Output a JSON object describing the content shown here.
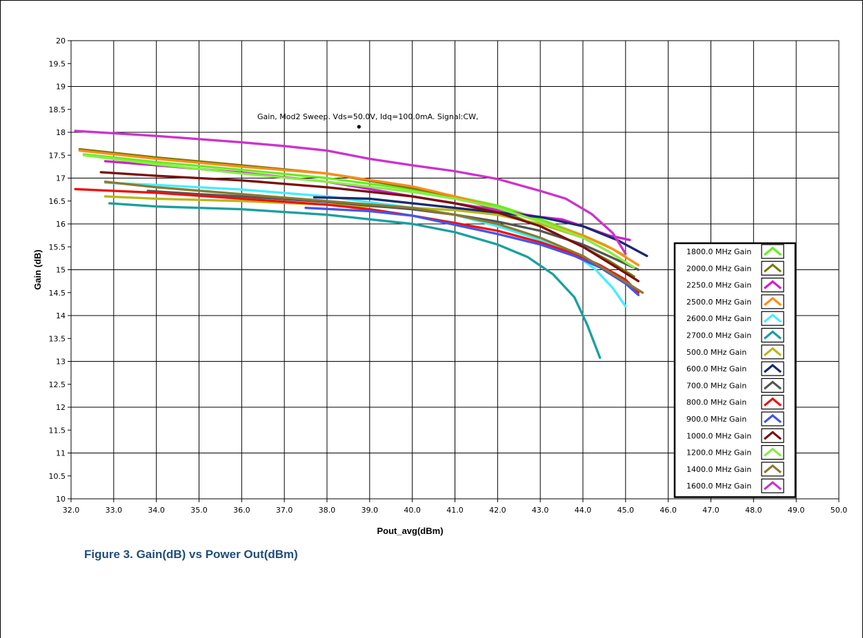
{
  "caption": "Figure 3. Gain(dB)  vs Power Out(dBm)",
  "chart_data": {
    "type": "line",
    "title": "",
    "annotation": "Gain, Mod2  Sweep. Vds=50.0V, Idq=100.0mA. Signal:CW,",
    "annotation_point": [
      38.75,
      18.12
    ],
    "xlabel": "Pout_avg(dBm)",
    "ylabel": "Gain (dB)",
    "xlim": [
      32.0,
      50.0
    ],
    "ylim": [
      10,
      20
    ],
    "xticks": [
      "32.0",
      "33.0",
      "34.0",
      "35.0",
      "36.0",
      "37.0",
      "38.0",
      "39.0",
      "40.0",
      "41.0",
      "42.0",
      "43.0",
      "44.0",
      "45.0",
      "46.0",
      "47.0",
      "48.0",
      "49.0",
      "50.0"
    ],
    "yticks": [
      "10",
      "10.5",
      "11",
      "11.5",
      "12",
      "12.5",
      "13",
      "13.5",
      "14",
      "14.5",
      "15",
      "15.5",
      "16",
      "16.5",
      "17",
      "17.5",
      "18",
      "18.5",
      "19",
      "19.5",
      "20"
    ],
    "grid": true,
    "legend_position": "right",
    "series": [
      {
        "name": "1800.0 MHz Gain",
        "color": "#66ee22",
        "points": [
          [
            32.3,
            17.52
          ],
          [
            34,
            17.35
          ],
          [
            36,
            17.18
          ],
          [
            38,
            17.0
          ],
          [
            40,
            16.75
          ],
          [
            41,
            16.6
          ],
          [
            42,
            16.4
          ],
          [
            43,
            16.1
          ],
          [
            44,
            15.75
          ],
          [
            44.5,
            15.55
          ],
          [
            45.0,
            15.3
          ]
        ]
      },
      {
        "name": "2000.0 MHz Gain",
        "color": "#7a7a10",
        "points": [
          [
            32.2,
            17.63
          ],
          [
            34,
            17.45
          ],
          [
            36,
            17.28
          ],
          [
            38,
            17.1
          ],
          [
            40,
            16.78
          ],
          [
            41,
            16.6
          ],
          [
            42,
            16.3
          ],
          [
            43,
            15.95
          ],
          [
            44,
            15.5
          ],
          [
            44.6,
            15.2
          ],
          [
            45.2,
            14.85
          ]
        ]
      },
      {
        "name": "2250.0 MHz Gain",
        "color": "#cc22cc",
        "points": [
          [
            32.8,
            17.37
          ],
          [
            34,
            17.28
          ],
          [
            36,
            17.12
          ],
          [
            38,
            16.92
          ],
          [
            40,
            16.6
          ],
          [
            41,
            16.45
          ],
          [
            42,
            16.3
          ],
          [
            43,
            16.15
          ],
          [
            43.5,
            16.1
          ],
          [
            44,
            15.95
          ],
          [
            44.6,
            15.75
          ],
          [
            45.1,
            15.65
          ]
        ]
      },
      {
        "name": "2500.0 MHz Gain",
        "color": "#ff8c1a",
        "points": [
          [
            32.2,
            17.6
          ],
          [
            34,
            17.42
          ],
          [
            36,
            17.25
          ],
          [
            38,
            17.1
          ],
          [
            40,
            16.82
          ],
          [
            41,
            16.6
          ],
          [
            42,
            16.35
          ],
          [
            43,
            16.05
          ],
          [
            44,
            15.75
          ],
          [
            44.7,
            15.45
          ],
          [
            45.3,
            15.1
          ]
        ]
      },
      {
        "name": "2600.0 MHz Gain",
        "color": "#44eeff",
        "points": [
          [
            32.8,
            16.9
          ],
          [
            34,
            16.85
          ],
          [
            36,
            16.75
          ],
          [
            38,
            16.6
          ],
          [
            40,
            16.35
          ],
          [
            41,
            16.2
          ],
          [
            42,
            15.95
          ],
          [
            43,
            15.65
          ],
          [
            43.8,
            15.35
          ],
          [
            44.3,
            15.0
          ],
          [
            44.7,
            14.6
          ],
          [
            45.0,
            14.2
          ]
        ]
      },
      {
        "name": "2700.0 MHz Gain",
        "color": "#1aa0a0",
        "points": [
          [
            32.9,
            16.45
          ],
          [
            34,
            16.38
          ],
          [
            36,
            16.32
          ],
          [
            38,
            16.2
          ],
          [
            39,
            16.1
          ],
          [
            40,
            16.0
          ],
          [
            41,
            15.82
          ],
          [
            42,
            15.55
          ],
          [
            42.7,
            15.28
          ],
          [
            43.3,
            14.9
          ],
          [
            43.8,
            14.4
          ],
          [
            44.1,
            13.8
          ],
          [
            44.4,
            13.08
          ]
        ]
      },
      {
        "name": "500.0 MHz Gain",
        "color": "#b8b81a",
        "points": [
          [
            32.8,
            16.6
          ],
          [
            34,
            16.55
          ],
          [
            36,
            16.5
          ],
          [
            38,
            16.42
          ],
          [
            40,
            16.35
          ],
          [
            41,
            16.3
          ],
          [
            42,
            16.2
          ],
          [
            43,
            16.0
          ],
          [
            44,
            15.7
          ],
          [
            44.6,
            15.4
          ],
          [
            45.1,
            15.1
          ]
        ]
      },
      {
        "name": "600.0 MHz Gain",
        "color": "#1a2a6e",
        "points": [
          [
            37.7,
            16.58
          ],
          [
            39,
            16.55
          ],
          [
            40,
            16.45
          ],
          [
            41,
            16.35
          ],
          [
            42,
            16.25
          ],
          [
            43,
            16.15
          ],
          [
            44,
            15.95
          ],
          [
            44.8,
            15.65
          ],
          [
            45.5,
            15.3
          ]
        ]
      },
      {
        "name": "700.0 MHz Gain",
        "color": "#555555",
        "points": [
          [
            33.8,
            16.72
          ],
          [
            35,
            16.65
          ],
          [
            36,
            16.6
          ],
          [
            38,
            16.48
          ],
          [
            40,
            16.32
          ],
          [
            41,
            16.2
          ],
          [
            42,
            16.05
          ],
          [
            43,
            15.85
          ],
          [
            44,
            15.55
          ],
          [
            44.6,
            15.3
          ],
          [
            45.3,
            15.0
          ]
        ]
      },
      {
        "name": "800.0 MHz Gain",
        "color": "#ee1111",
        "points": [
          [
            32.1,
            16.76
          ],
          [
            34,
            16.68
          ],
          [
            36,
            16.55
          ],
          [
            38,
            16.42
          ],
          [
            39,
            16.32
          ],
          [
            40,
            16.18
          ],
          [
            41,
            16.02
          ],
          [
            42,
            15.85
          ],
          [
            43,
            15.6
          ],
          [
            43.8,
            15.35
          ],
          [
            44.4,
            15.1
          ],
          [
            45.0,
            14.78
          ],
          [
            45.3,
            14.5
          ]
        ]
      },
      {
        "name": "900.0 MHz Gain",
        "color": "#4455ee",
        "points": [
          [
            37.5,
            16.35
          ],
          [
            39,
            16.28
          ],
          [
            40,
            16.18
          ],
          [
            41,
            15.98
          ],
          [
            42,
            15.78
          ],
          [
            43,
            15.55
          ],
          [
            43.8,
            15.3
          ],
          [
            44.4,
            15.05
          ],
          [
            45.0,
            14.7
          ],
          [
            45.3,
            14.45
          ]
        ]
      },
      {
        "name": "1000.0 MHz Gain",
        "color": "#7a1010",
        "points": [
          [
            32.7,
            17.13
          ],
          [
            34,
            17.05
          ],
          [
            36,
            16.95
          ],
          [
            38,
            16.8
          ],
          [
            40,
            16.6
          ],
          [
            41,
            16.45
          ],
          [
            42,
            16.25
          ],
          [
            43,
            15.95
          ],
          [
            44,
            15.5
          ],
          [
            44.7,
            15.1
          ],
          [
            45.3,
            14.75
          ]
        ]
      },
      {
        "name": "1200.0 MHz Gain",
        "color": "#88ee44",
        "points": [
          [
            32.3,
            17.5
          ],
          [
            34,
            17.3
          ],
          [
            36,
            17.1
          ],
          [
            38,
            16.92
          ],
          [
            40,
            16.7
          ],
          [
            41,
            16.55
          ],
          [
            42,
            16.35
          ],
          [
            43,
            16.05
          ],
          [
            44,
            15.7
          ],
          [
            44.6,
            15.4
          ],
          [
            45.2,
            15.05
          ]
        ]
      },
      {
        "name": "1400.0 MHz Gain",
        "color": "#8a7a30",
        "points": [
          [
            32.8,
            16.92
          ],
          [
            34,
            16.8
          ],
          [
            36,
            16.65
          ],
          [
            38,
            16.5
          ],
          [
            40,
            16.35
          ],
          [
            41,
            16.2
          ],
          [
            42,
            16.0
          ],
          [
            43,
            15.7
          ],
          [
            44,
            15.3
          ],
          [
            44.8,
            14.85
          ],
          [
            45.4,
            14.5
          ]
        ]
      },
      {
        "name": "1600.0 MHz Gain",
        "color": "#cc33cc",
        "points": [
          [
            32.1,
            18.03
          ],
          [
            34,
            17.92
          ],
          [
            36,
            17.78
          ],
          [
            37,
            17.7
          ],
          [
            38,
            17.6
          ],
          [
            39,
            17.42
          ],
          [
            40,
            17.28
          ],
          [
            41,
            17.15
          ],
          [
            42,
            16.98
          ],
          [
            43,
            16.72
          ],
          [
            43.6,
            16.55
          ],
          [
            44.2,
            16.22
          ],
          [
            44.7,
            15.8
          ],
          [
            45.0,
            15.35
          ]
        ]
      }
    ]
  }
}
